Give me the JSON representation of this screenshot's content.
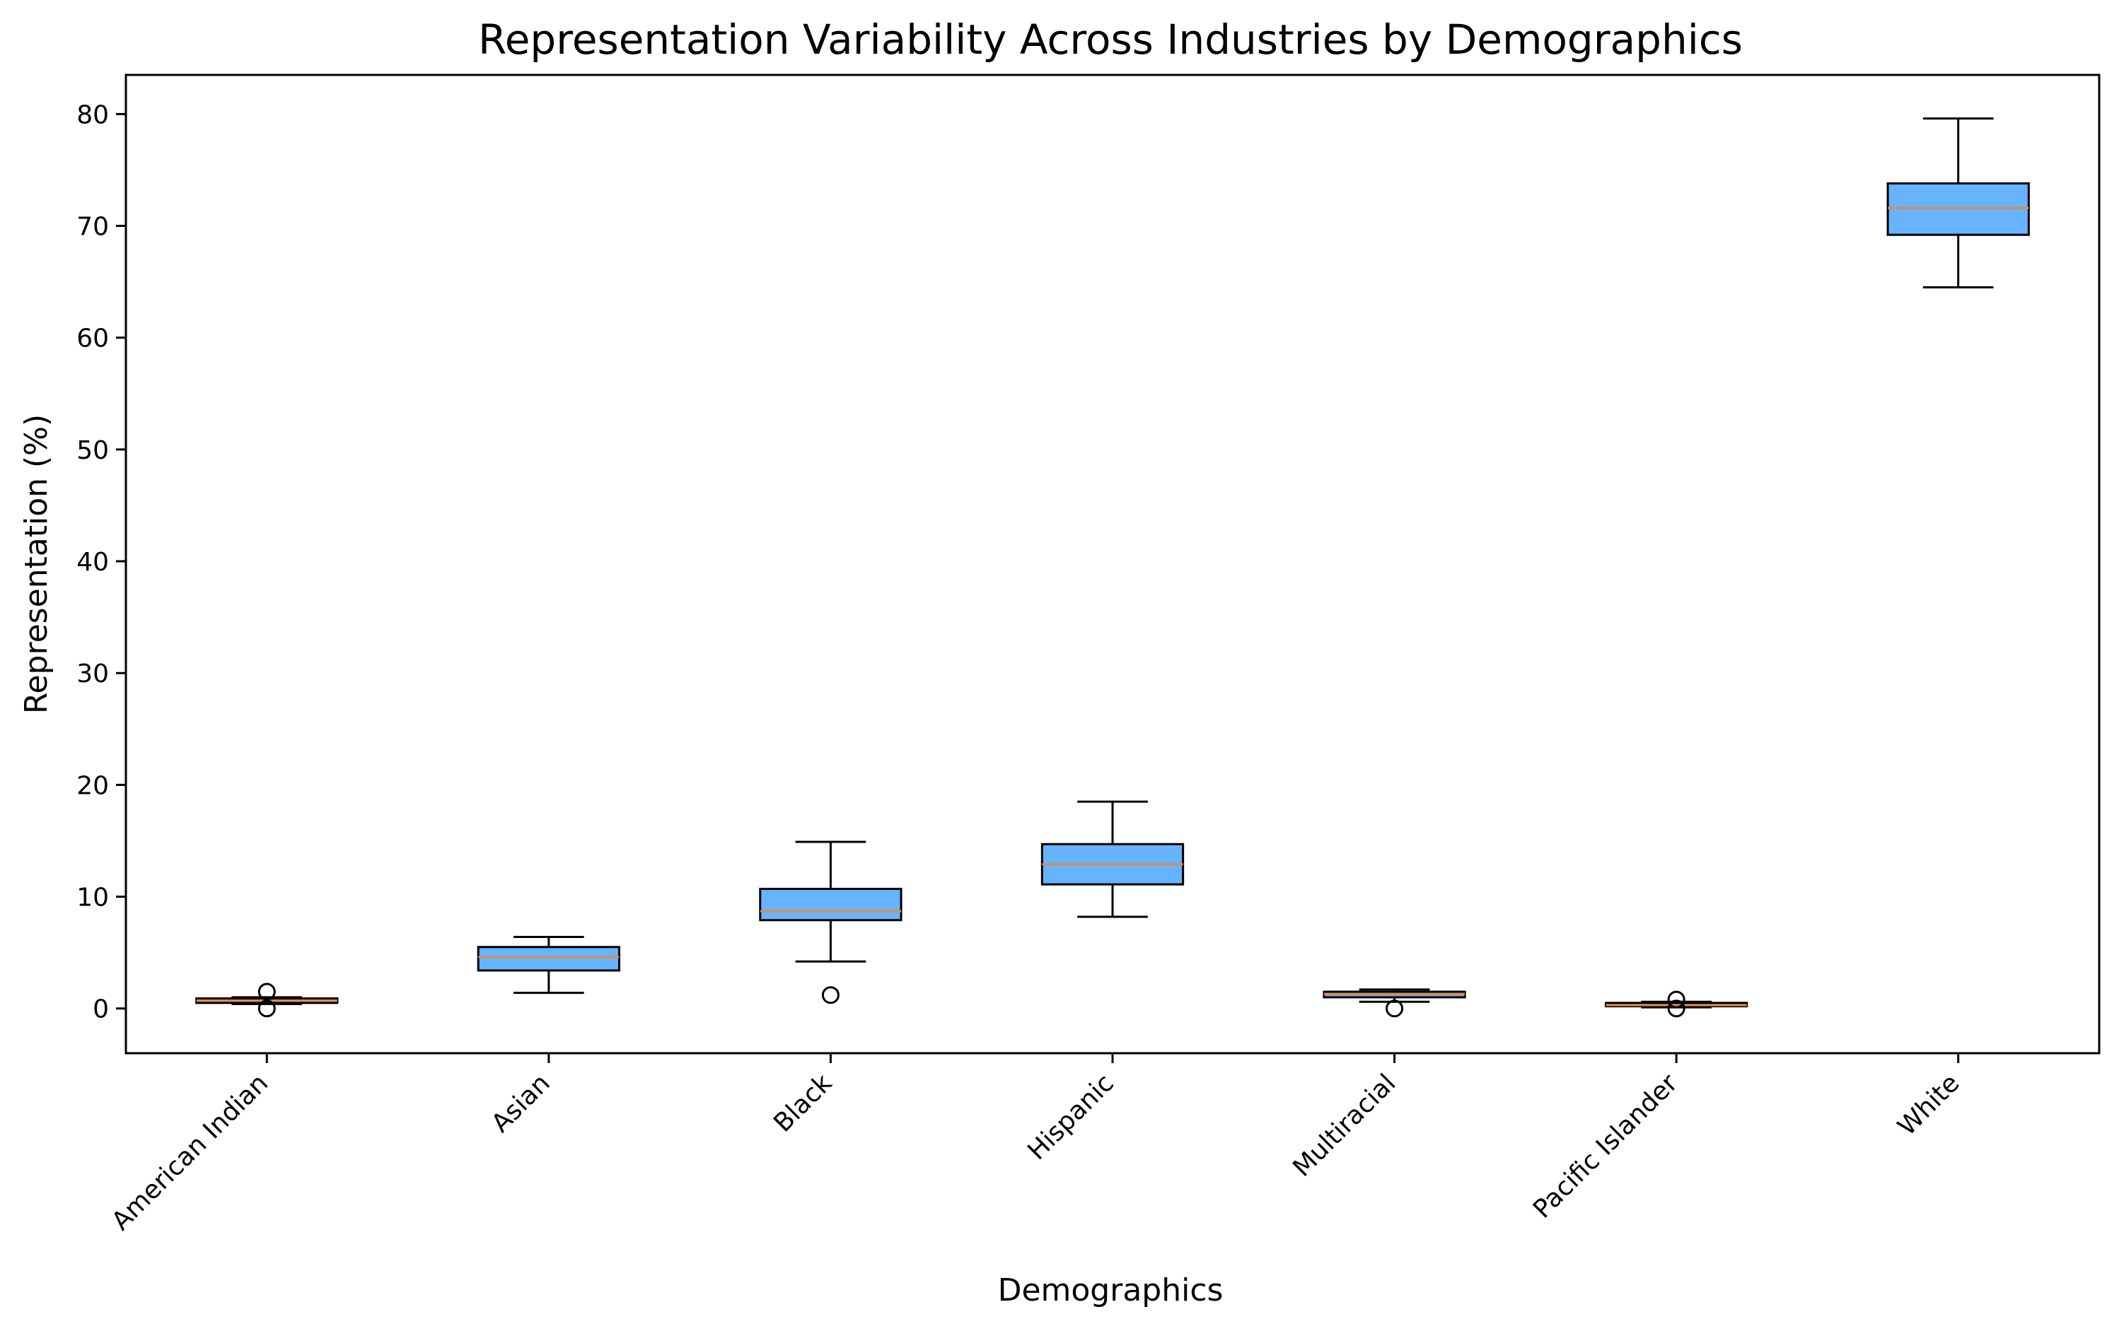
{
  "chart_data": {
    "type": "box",
    "title": "Representation Variability Across Industries by Demographics",
    "xlabel": "Demographics",
    "ylabel": "Representation (%)",
    "ylim": [
      -4,
      83.5
    ],
    "yticks": [
      0,
      10,
      20,
      30,
      40,
      50,
      60,
      70,
      80
    ],
    "grid": false,
    "box_color": "#66b3ff",
    "median_color": "#e8893a",
    "categories": [
      "American Indian",
      "Asian",
      "Black",
      "Hispanic",
      "Multiracial",
      "Pacific Islander",
      "White"
    ],
    "boxes": [
      {
        "category": "American Indian",
        "whisker_low": 0.4,
        "q1": 0.5,
        "median": 0.7,
        "q3": 0.9,
        "whisker_high": 1.0,
        "outliers": [
          0.0,
          1.5
        ]
      },
      {
        "category": "Asian",
        "whisker_low": 1.4,
        "q1": 3.4,
        "median": 4.6,
        "q3": 5.5,
        "whisker_high": 6.4,
        "outliers": []
      },
      {
        "category": "Black",
        "whisker_low": 4.2,
        "q1": 7.9,
        "median": 8.7,
        "q3": 10.7,
        "whisker_high": 14.9,
        "outliers": [
          1.2
        ]
      },
      {
        "category": "Hispanic",
        "whisker_low": 8.2,
        "q1": 11.1,
        "median": 12.9,
        "q3": 14.7,
        "whisker_high": 18.5,
        "outliers": []
      },
      {
        "category": "Multiracial",
        "whisker_low": 0.6,
        "q1": 1.0,
        "median": 1.3,
        "q3": 1.5,
        "whisker_high": 1.7,
        "outliers": [
          0.0
        ]
      },
      {
        "category": "Pacific Islander",
        "whisker_low": 0.1,
        "q1": 0.2,
        "median": 0.3,
        "q3": 0.5,
        "whisker_high": 0.6,
        "outliers": [
          0.0,
          0.8
        ]
      },
      {
        "category": "White",
        "whisker_low": 64.5,
        "q1": 69.2,
        "median": 71.6,
        "q3": 73.8,
        "whisker_high": 79.6,
        "outliers": []
      }
    ]
  }
}
